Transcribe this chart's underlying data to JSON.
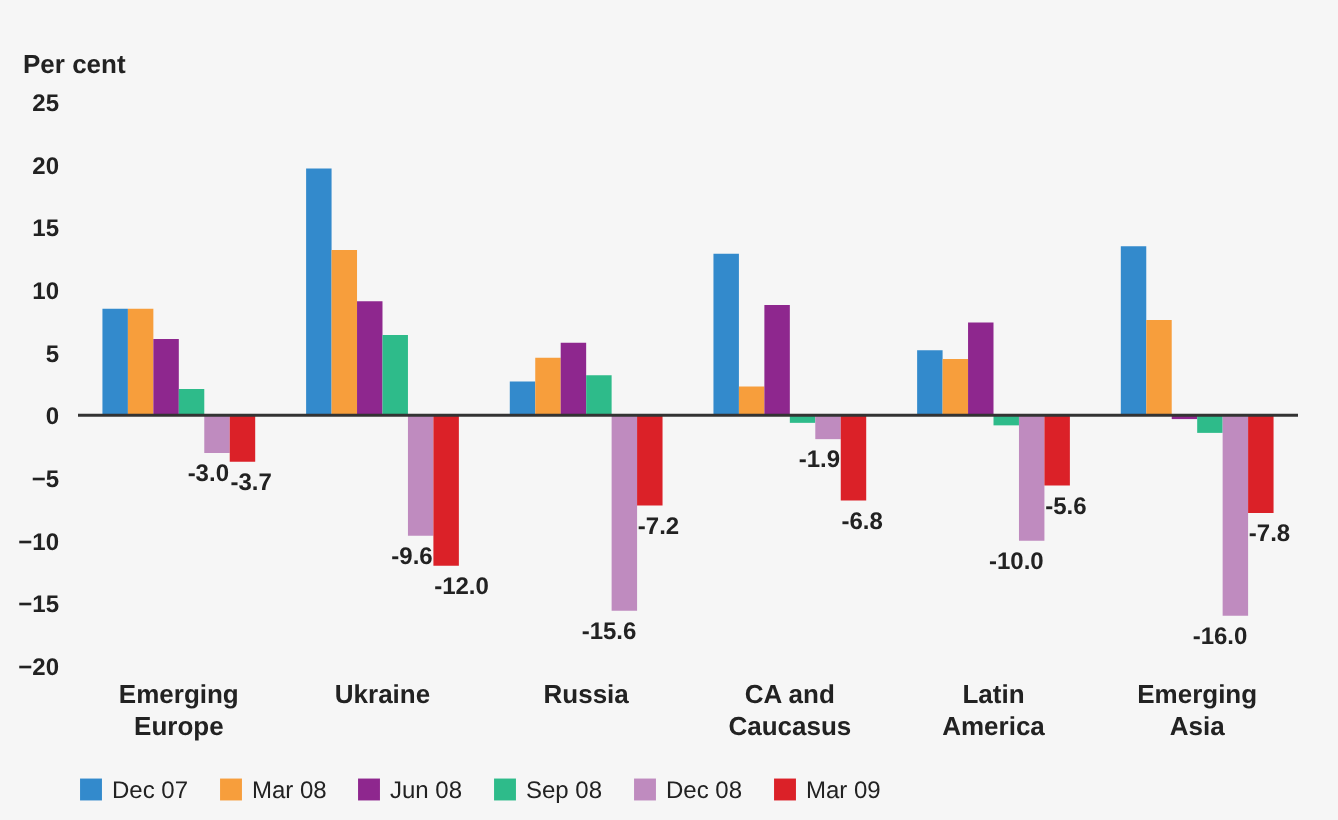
{
  "chart_data": {
    "type": "bar",
    "ylabel": "Per cent",
    "categories": [
      "Emerging Europe",
      "Ukraine",
      "Russia",
      "CA and Caucasus",
      "Latin America",
      "Emerging Asia"
    ],
    "series": [
      {
        "name": "Dec 07",
        "color": "#338acc",
        "values": [
          8.5,
          19.7,
          2.7,
          12.9,
          5.2,
          13.5
        ]
      },
      {
        "name": "Mar 08",
        "color": "#f79e3c",
        "values": [
          8.5,
          13.2,
          4.6,
          2.3,
          4.5,
          7.6
        ]
      },
      {
        "name": "Jun 08",
        "color": "#8e278e",
        "values": [
          6.1,
          9.1,
          5.8,
          8.8,
          7.4,
          -0.3
        ]
      },
      {
        "name": "Sep 08",
        "color": "#2ebb8a",
        "values": [
          2.1,
          6.4,
          3.2,
          -0.6,
          -0.8,
          -1.4
        ]
      },
      {
        "name": "Dec 08",
        "color": "#bf8bbf",
        "values": [
          -3.0,
          -9.6,
          -15.6,
          -1.9,
          -10.0,
          -16.0
        ],
        "value_labels": [
          "-3.0",
          "-9.6",
          "-15.6",
          "-1.9",
          "-10.0",
          "-16.0"
        ]
      },
      {
        "name": "Mar 09",
        "color": "#db2128",
        "values": [
          -3.7,
          -12.0,
          -7.2,
          -6.8,
          -5.6,
          -7.8
        ],
        "value_labels": [
          "-3.7",
          "-12.0",
          "-7.2",
          "-6.8",
          "-5.6",
          "-7.8"
        ]
      }
    ],
    "ylim": [
      -20,
      25
    ],
    "yticks": [
      -20,
      -15,
      -10,
      -5,
      0,
      5,
      10,
      15,
      20,
      25
    ],
    "legend": "bottom"
  }
}
